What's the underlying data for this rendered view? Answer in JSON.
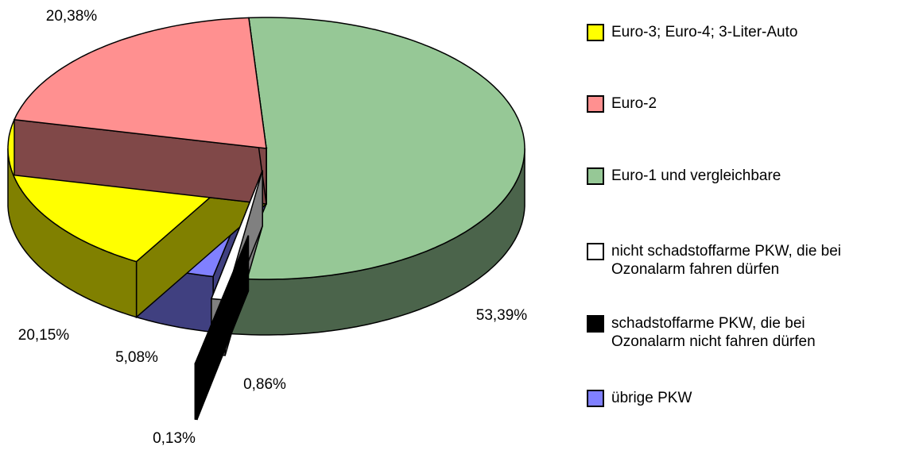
{
  "chart_data": {
    "type": "pie3d",
    "categories": [
      "Euro-3; Euro-4; 3-Liter-Auto",
      "Euro-2",
      "Euro-1 und vergleichbare",
      "nicht schadstoffarme PKW, die bei\nOzonalarm fahren dürfen",
      "schadstoffarme PKW, die bei\nOzonalarm nicht fahren dürfen",
      "übrige PKW"
    ],
    "values": [
      20.15,
      20.38,
      53.39,
      0.86,
      0.13,
      5.08
    ],
    "value_labels": [
      "20,15%",
      "20,38%",
      "53,39%",
      "0,86%",
      "0,13%",
      "5,08%"
    ],
    "colors": [
      "#ffff00",
      "#ff9090",
      "#96c896",
      "#ffffff",
      "#000000",
      "#8080ff"
    ],
    "legend": "right"
  }
}
